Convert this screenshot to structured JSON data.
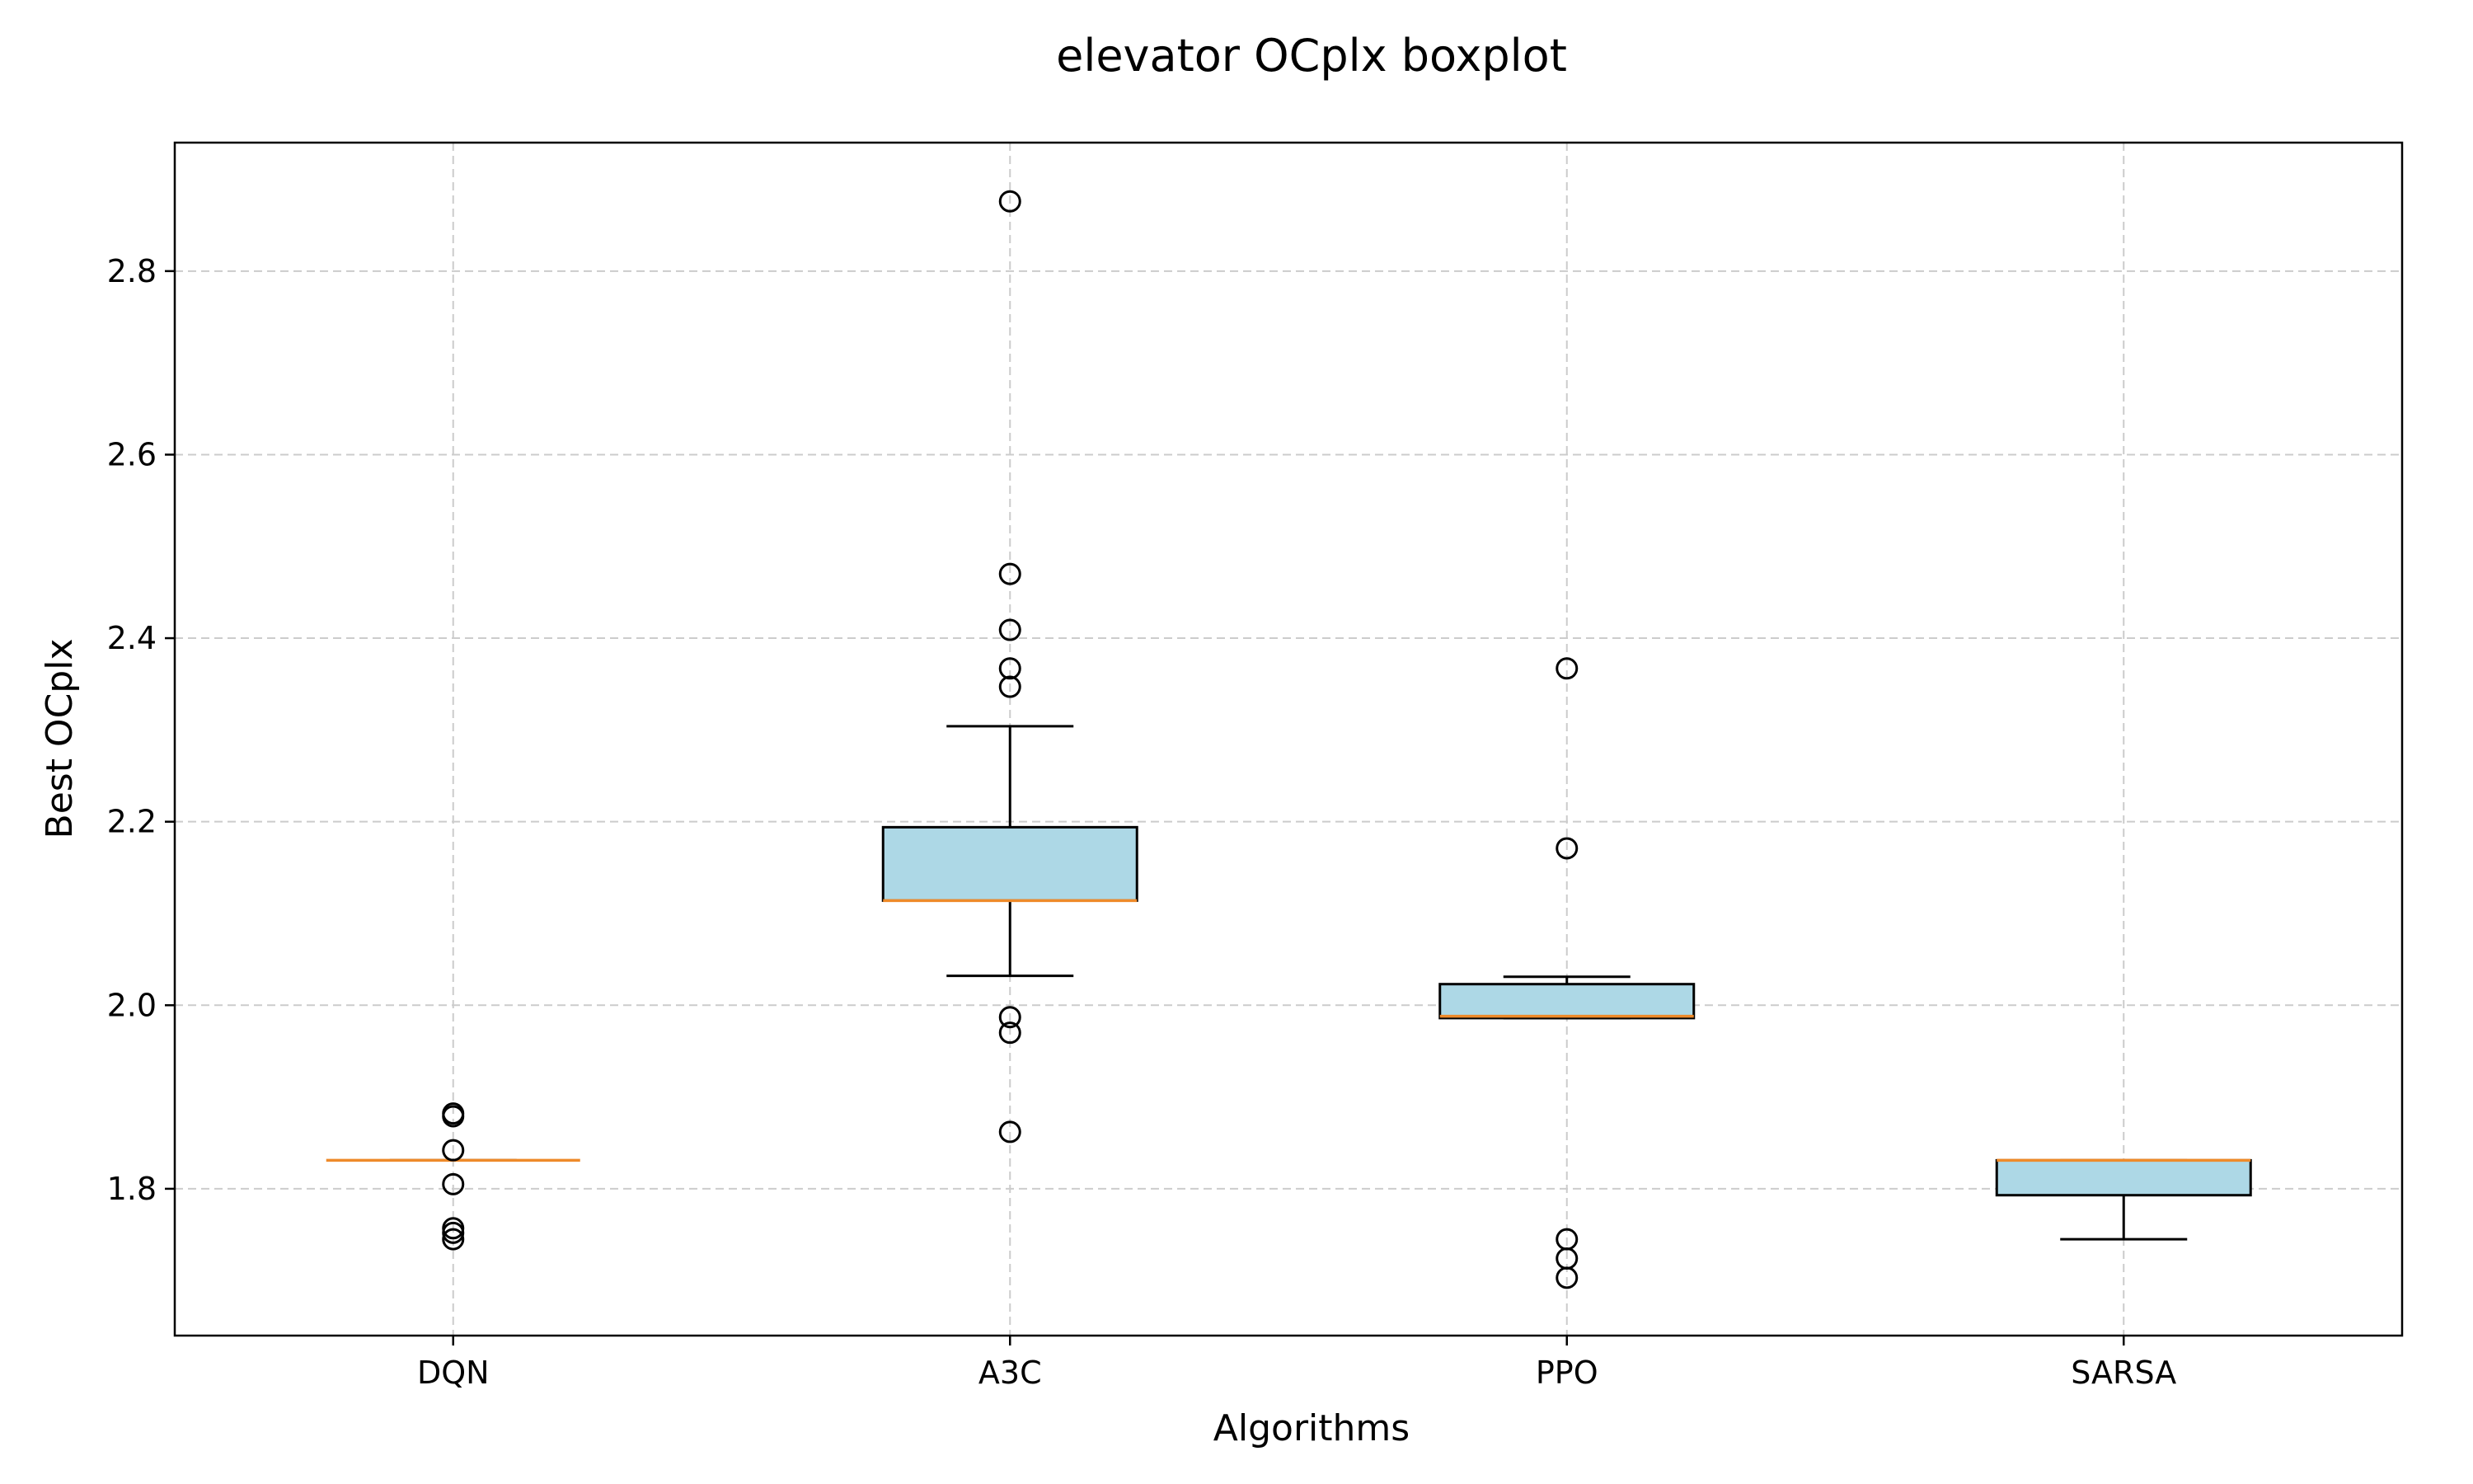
{
  "chart_data": {
    "type": "boxplot",
    "title": "elevator OCplx boxplot",
    "xlabel": "Algorithms",
    "ylabel": "Best OCplx",
    "categories": [
      "DQN",
      "A3C",
      "PPO",
      "SARSA"
    ],
    "ylim": [
      1.64,
      2.94
    ],
    "yticks": [
      1.8,
      2.0,
      2.2,
      2.4,
      2.6,
      2.8
    ],
    "ytick_labels": [
      "1.8",
      "2.0",
      "2.2",
      "2.4",
      "2.6",
      "2.8"
    ],
    "grid": true,
    "box_color": "#add8e6",
    "median_color": "#ee8a2a",
    "boxes": [
      {
        "name": "DQN",
        "whisker_low": 1.831,
        "q1": 1.831,
        "median": 1.831,
        "q3": 1.831,
        "whisker_high": 1.831,
        "outliers": [
          1.882,
          1.879,
          1.842,
          1.805,
          1.757,
          1.752,
          1.745
        ]
      },
      {
        "name": "A3C",
        "whisker_low": 2.032,
        "q1": 2.114,
        "median": 2.114,
        "q3": 2.194,
        "whisker_high": 2.304,
        "outliers": [
          2.876,
          2.47,
          2.409,
          2.367,
          2.347,
          1.987,
          1.97,
          1.862
        ]
      },
      {
        "name": "PPO",
        "whisker_low": 1.986,
        "q1": 1.986,
        "median": 1.988,
        "q3": 2.023,
        "whisker_high": 2.031,
        "outliers": [
          2.367,
          2.171,
          1.745,
          1.724,
          1.703
        ]
      },
      {
        "name": "SARSA",
        "whisker_low": 1.745,
        "q1": 1.793,
        "median": 1.831,
        "q3": 1.831,
        "whisker_high": 1.831,
        "outliers": []
      }
    ]
  }
}
